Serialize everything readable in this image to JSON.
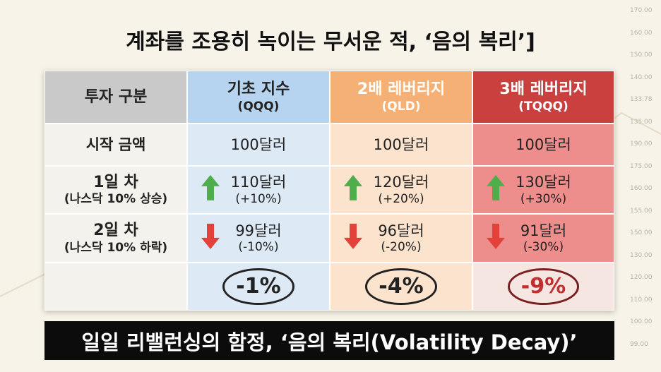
{
  "title": "계좌를 조용히 녹이는 무서운 적, ‘음의 복리’]",
  "table": {
    "header": [
      [
        "투자 구분"
      ],
      [
        "기초 지수",
        "(QQQ)"
      ],
      [
        "2배 레버리지",
        "(QLD)"
      ],
      [
        "3배 레버리지",
        "(TQQQ)"
      ]
    ],
    "rows": [
      [
        [
          "시작 금액"
        ],
        [
          "100달러"
        ],
        [
          "100달러"
        ],
        [
          "100달러"
        ]
      ],
      [
        [
          "1일 차",
          "(나스닥 10% 상승)"
        ],
        [
          "110달러",
          "(+10%)"
        ],
        [
          "120달러",
          "(+20%)"
        ],
        [
          "130달러",
          "(+30%)"
        ]
      ],
      [
        [
          "2일 차",
          "(나스닥 10% 하락)"
        ],
        [
          "99달러",
          "(-10%)"
        ],
        [
          "96달러",
          "(-20%)"
        ],
        [
          "91달러",
          "(-30%)"
        ]
      ]
    ],
    "results": [
      "-1%",
      "-4%",
      "-9%"
    ]
  },
  "banner": "일일 리밸런싱의 함정, ‘음의 복리(Volatility Decay)’",
  "price_labels": [
    "170.00",
    "160.00",
    "150.00",
    "140.00",
    "133.78",
    "135.00",
    "190.00",
    "175.00",
    "160.00",
    "155.00",
    "150.00",
    "130.00",
    "120.00",
    "110.00",
    "100.00",
    "99.00"
  ]
}
